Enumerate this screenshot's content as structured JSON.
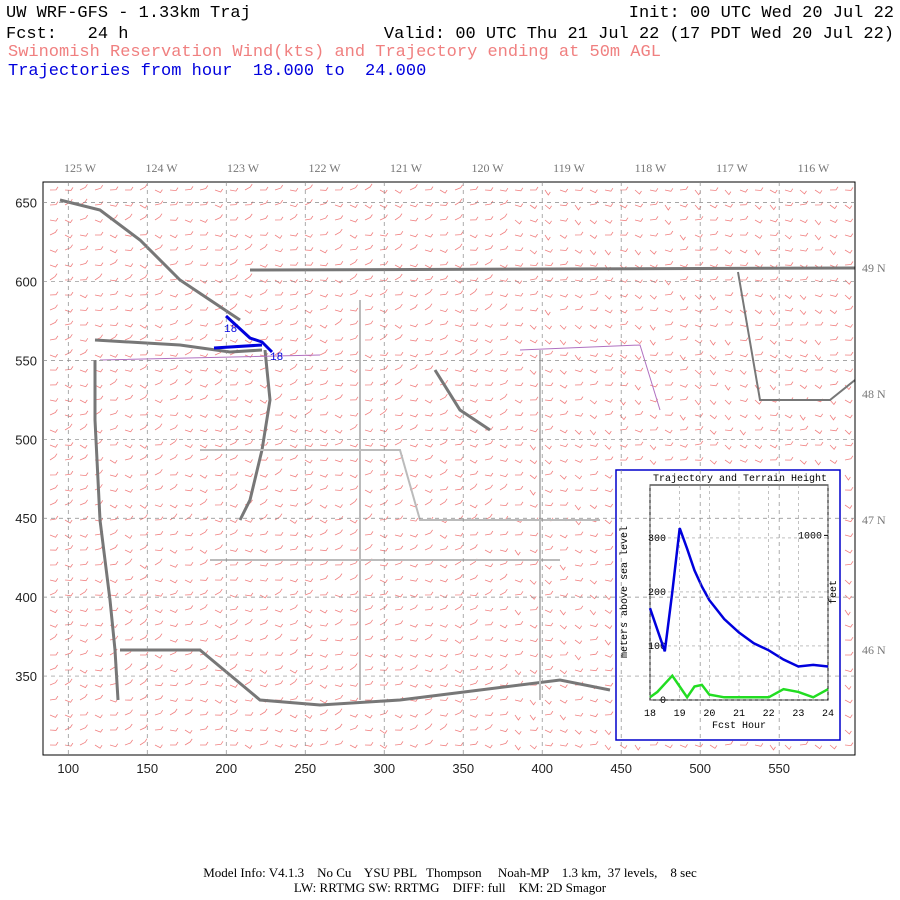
{
  "header": {
    "model": "UW WRF-GFS - 1.33km Traj",
    "init": "Init: 00 UTC Wed 20 Jul 22",
    "fcst": "Fcst:   24 h",
    "valid": "Valid: 00 UTC Thu 21 Jul 22 (17 PDT Wed 20 Jul 22)",
    "subtitle": "Swinomish Reservation Wind(kts) and Trajectory ending at 50m AGL",
    "traj_range": "Trajectories from hour  18.000 to  24.000"
  },
  "map": {
    "xlim": [
      84,
      598
    ],
    "xticks": [
      100,
      150,
      200,
      250,
      300,
      350,
      400,
      450,
      500,
      550
    ],
    "ylim": [
      300,
      663
    ],
    "yticks": [
      350,
      400,
      450,
      500,
      550,
      600,
      650
    ],
    "lon_labels": [
      "125 W",
      "124 W",
      "123 W",
      "122 W",
      "121 W",
      "120 W",
      "119 W",
      "118 W",
      "117 W",
      "116 W"
    ],
    "lat_labels": [
      "49 N",
      "48 N",
      "47 N",
      "46 N"
    ],
    "traj_labels": [
      "18",
      "18"
    ]
  },
  "chart_data": {
    "type": "line",
    "title": "Trajectory and Terrain Height",
    "x_label": "Fcst Hour",
    "y_label": "meters above sea level",
    "y2_label": "feet",
    "x": [
      18,
      18.25,
      18.5,
      18.75,
      19,
      19.25,
      19.5,
      19.75,
      20,
      20.5,
      21,
      21.5,
      22,
      22.5,
      23,
      23.5,
      24
    ],
    "xlim": [
      18,
      24
    ],
    "xticks": [
      18,
      19,
      20,
      21,
      22,
      23,
      24
    ],
    "ylim": [
      0,
      398
    ],
    "yticks": [
      0,
      100,
      200,
      300
    ],
    "y2lim": [
      0,
      1306
    ],
    "y2ticks": [
      1000
    ],
    "grid": true,
    "series": [
      {
        "name": "Trajectory",
        "color": "#0000dd",
        "values": [
          170,
          130,
          90,
          200,
          318,
          280,
          240,
          210,
          185,
          150,
          125,
          105,
          92,
          75,
          62,
          65,
          62
        ]
      },
      {
        "name": "Terrain",
        "color": "#22dd22",
        "values": [
          5,
          15,
          30,
          45,
          25,
          5,
          25,
          28,
          10,
          5,
          5,
          5,
          5,
          20,
          15,
          5,
          20
        ]
      }
    ]
  },
  "footer": {
    "line1": "Model Info: V4.1.3    No Cu    YSU PBL   Thompson     Noah-MP    1.3 km,  37 levels,    8 sec",
    "line2": "LW: RRTMG SW: RRTMG    DIFF: full    KM: 2D Smagor"
  }
}
